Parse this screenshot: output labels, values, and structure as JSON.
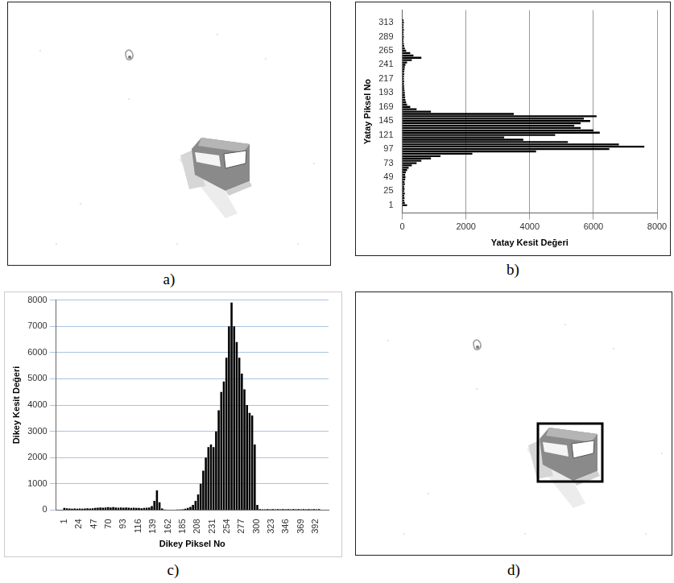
{
  "panel_labels": [
    "a)",
    "b)",
    "c)",
    "d)"
  ],
  "chart_data": [
    {
      "type": "bar",
      "orientation": "horizontal",
      "color": "#000000",
      "grid": true,
      "x_label": "Yatay Kesit Değeri",
      "y_label": "Yatay Piksel No",
      "xlim": [
        0,
        8000
      ],
      "xticks": [
        0,
        2000,
        4000,
        6000,
        8000
      ],
      "ylim": [
        0,
        322
      ],
      "yticks": [
        1,
        25,
        49,
        73,
        97,
        121,
        145,
        169,
        193,
        217,
        241,
        265,
        289,
        313
      ],
      "y": [
        1,
        5,
        9,
        13,
        17,
        21,
        25,
        29,
        33,
        37,
        41,
        45,
        49,
        53,
        57,
        61,
        65,
        69,
        73,
        77,
        81,
        85,
        89,
        93,
        97,
        101,
        105,
        109,
        113,
        117,
        121,
        125,
        129,
        133,
        137,
        141,
        145,
        149,
        153,
        157,
        161,
        165,
        169,
        173,
        177,
        181,
        185,
        189,
        193,
        197,
        201,
        205,
        209,
        213,
        217,
        221,
        225,
        229,
        233,
        237,
        241,
        245,
        249,
        253,
        257,
        261,
        265,
        269,
        273,
        277,
        281,
        285,
        289,
        293,
        297,
        301,
        305,
        309,
        313,
        317
      ],
      "values": [
        150,
        80,
        60,
        70,
        60,
        80,
        60,
        70,
        60,
        80,
        70,
        90,
        100,
        90,
        110,
        150,
        200,
        300,
        450,
        600,
        900,
        1200,
        2200,
        4200,
        6500,
        7600,
        6800,
        5200,
        3800,
        3200,
        4800,
        6200,
        6000,
        5600,
        5400,
        5600,
        5900,
        5700,
        6100,
        3500,
        900,
        450,
        250,
        150,
        120,
        100,
        90,
        80,
        80,
        70,
        60,
        60,
        50,
        60,
        50,
        50,
        60,
        60,
        70,
        80,
        100,
        150,
        300,
        600,
        350,
        250,
        120,
        80,
        60,
        50,
        40,
        40,
        50,
        40,
        40,
        50,
        40,
        40,
        50,
        40
      ]
    },
    {
      "type": "bar",
      "color": "#000000",
      "grid": true,
      "x_label": "Dikey Piksel No",
      "y_label": "Dikey Kesit Değeri",
      "xlim": [
        0,
        400
      ],
      "xticks": [
        1,
        24,
        47,
        70,
        93,
        116,
        139,
        162,
        185,
        208,
        231,
        254,
        277,
        300,
        323,
        346,
        369,
        392
      ],
      "ylim": [
        0,
        8000
      ],
      "yticks": [
        0,
        1000,
        2000,
        3000,
        4000,
        5000,
        6000,
        7000,
        8000
      ],
      "x": [
        1,
        5,
        9,
        13,
        17,
        21,
        25,
        29,
        33,
        37,
        41,
        45,
        49,
        53,
        57,
        61,
        65,
        69,
        73,
        77,
        81,
        85,
        89,
        93,
        97,
        101,
        105,
        109,
        113,
        117,
        121,
        125,
        129,
        133,
        137,
        141,
        145,
        149,
        153,
        157,
        161,
        165,
        169,
        173,
        177,
        181,
        185,
        189,
        193,
        197,
        201,
        205,
        209,
        213,
        217,
        221,
        225,
        229,
        233,
        237,
        241,
        245,
        249,
        253,
        257,
        261,
        265,
        269,
        273,
        277,
        281,
        285,
        289,
        293,
        297,
        301,
        305,
        309,
        313,
        317,
        321,
        325,
        329,
        333,
        337,
        341,
        345,
        349,
        353,
        357,
        361,
        365,
        369,
        373,
        377,
        381,
        385,
        389,
        393,
        397
      ],
      "values": [
        80,
        70,
        60,
        50,
        60,
        50,
        60,
        50,
        60,
        70,
        60,
        70,
        80,
        90,
        100,
        90,
        100,
        110,
        100,
        110,
        100,
        90,
        100,
        90,
        100,
        90,
        80,
        90,
        80,
        80,
        70,
        80,
        90,
        100,
        150,
        350,
        750,
        300,
        60,
        20,
        15,
        10,
        15,
        10,
        20,
        20,
        30,
        50,
        80,
        120,
        200,
        350,
        600,
        1000,
        1500,
        2000,
        2400,
        2500,
        2400,
        3000,
        3800,
        4500,
        4900,
        5800,
        7000,
        7900,
        7000,
        6400,
        5800,
        5200,
        4600,
        4000,
        3700,
        3600,
        2500,
        200,
        40,
        30,
        30,
        40,
        30,
        40,
        30,
        40,
        30,
        40,
        30,
        40,
        30,
        40,
        30,
        40,
        30,
        40,
        30,
        40,
        30,
        40,
        30,
        40
      ]
    }
  ]
}
